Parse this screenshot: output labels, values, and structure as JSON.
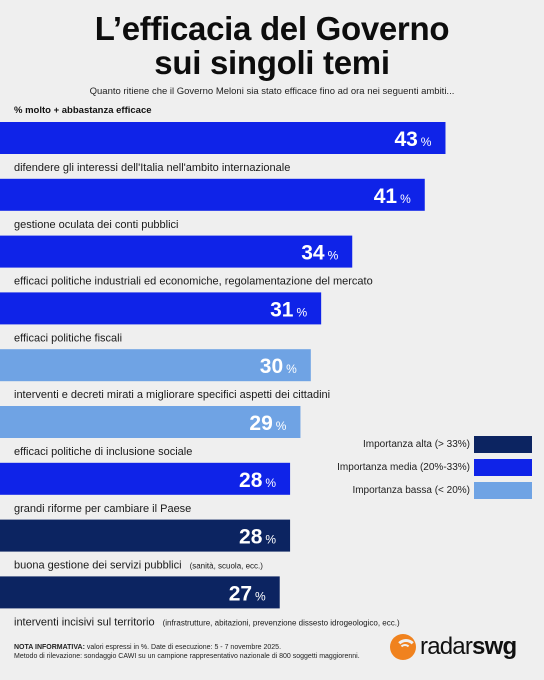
{
  "header": {
    "title_line1": "L’efficacia del Governo",
    "title_line2": "sui singoli temi",
    "subtitle": "Quanto ritiene che il Governo Meloni sia stato efficace fino ad ora nei seguenti ambiti...",
    "metric_label": "% molto + abbastanza efficace"
  },
  "colors": {
    "alta": "#0c2461",
    "media": "#0f23e8",
    "bassa": "#6fa3e4"
  },
  "chart_data": {
    "type": "bar",
    "orientation": "horizontal",
    "unit": "%",
    "categories": [
      "difendere gli interessi dell'Italia nell'ambito internazionale",
      "gestione oculata dei conti pubblici",
      "efficaci politiche industriali ed economiche, regolamentazione del mercato",
      "efficaci politiche fiscali",
      "interventi e decreti mirati a migliorare specifici aspetti dei cittadini",
      "efficaci politiche di inclusione sociale",
      "grandi riforme per cambiare il Paese",
      "buona gestione dei servizi pubblici",
      "interventi incisivi sul territorio"
    ],
    "category_notes": [
      "",
      "",
      "",
      "",
      "",
      "",
      "",
      "(sanità, scuola, ecc.)",
      "(infrastrutture, abitazioni, prevenzione dissesto idrogeologico, ecc.)"
    ],
    "values": [
      43,
      41,
      34,
      31,
      30,
      29,
      28,
      28,
      27
    ],
    "importance": [
      "media",
      "media",
      "media",
      "media",
      "bassa",
      "bassa",
      "media",
      "alta",
      "alta"
    ],
    "legend": [
      {
        "key": "alta",
        "label": "Importanza alta (> 33%)"
      },
      {
        "key": "media",
        "label": "Importanza media (20%-33%)"
      },
      {
        "key": "bassa",
        "label": "Importanza bassa (< 20%)"
      }
    ],
    "legend_position": "right"
  },
  "footer": {
    "note_label": "NOTA INFORMATIVA:",
    "note_line1": " valori espressi in %. Date di esecuzione: 5 - 7 novembre 2025.",
    "note_line2": "Metodo di rilevazione: sondaggio CAWI su un campione rappresentativo nazionale di 800 soggetti maggiorenni.",
    "logo_part1": "radar",
    "logo_part2": "swg"
  }
}
